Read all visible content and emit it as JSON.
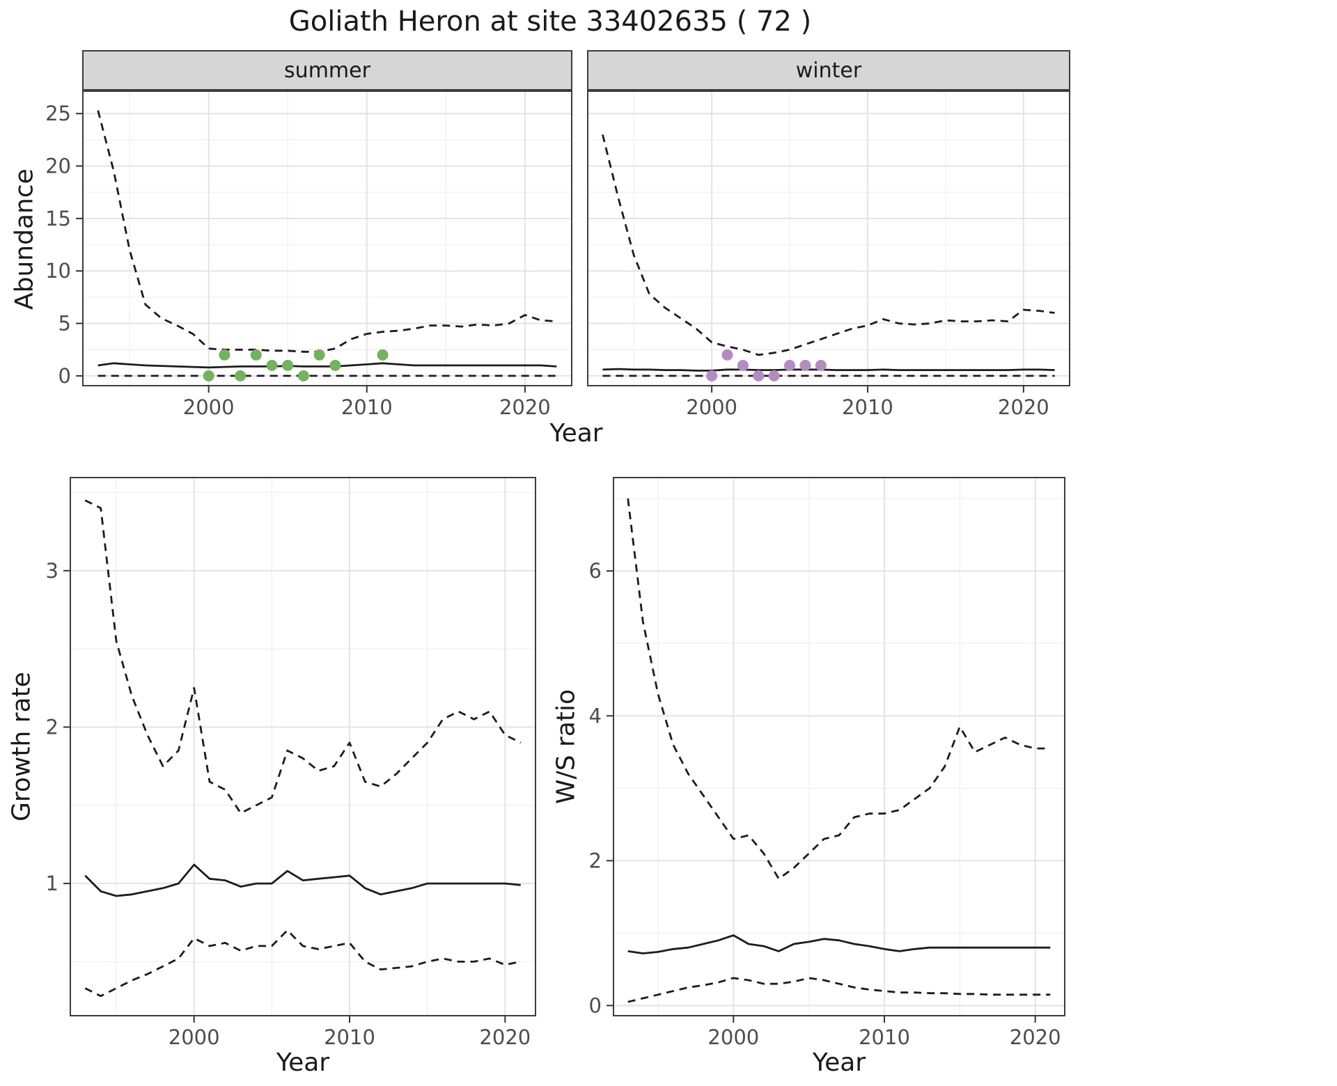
{
  "title": "Goliath Heron at site 33402635 ( 72 )",
  "labels": {
    "year": "Year",
    "abundance": "Abundance",
    "growth_rate": "Growth rate",
    "ws_ratio": "W/S ratio"
  },
  "colors": {
    "line": "#1c1c1c",
    "summer_points": "#74b35e",
    "winter_points": "#b48cc2",
    "strip_bg": "#d6d6d6",
    "grid_major": "#e3e3e3",
    "grid_minor": "#f0f0f0"
  },
  "chart_data": [
    {
      "id": "abundance_summer",
      "type": "line",
      "facet": "summer",
      "xlabel": "Year",
      "ylabel": "Abundance",
      "xlim": [
        1992,
        2023
      ],
      "ylim": [
        -1,
        27.2
      ],
      "x_ticks": [
        2000,
        2010,
        2020
      ],
      "x_minor": [
        1995,
        2005,
        2015
      ],
      "y_ticks": [
        0,
        5,
        10,
        15,
        20,
        25
      ],
      "y_minor": [
        2.5,
        7.5,
        12.5,
        17.5,
        22.5
      ],
      "grid": true,
      "legend": "none",
      "x": [
        1993,
        1994,
        1995,
        1996,
        1997,
        1998,
        1999,
        2000,
        2001,
        2002,
        2003,
        2004,
        2005,
        2006,
        2007,
        2008,
        2009,
        2010,
        2011,
        2012,
        2013,
        2014,
        2015,
        2016,
        2017,
        2018,
        2019,
        2020,
        2021,
        2022
      ],
      "series": [
        {
          "name": "upper CI",
          "style": "dashed",
          "y": [
            25.3,
            19.5,
            12.0,
            6.8,
            5.5,
            4.8,
            4.0,
            2.6,
            2.5,
            2.5,
            2.5,
            2.4,
            2.4,
            2.3,
            2.3,
            2.6,
            3.5,
            4.0,
            4.2,
            4.3,
            4.5,
            4.8,
            4.8,
            4.7,
            4.9,
            4.8,
            5.0,
            5.8,
            5.3,
            5.2
          ]
        },
        {
          "name": "median",
          "style": "solid",
          "y": [
            1.0,
            1.2,
            1.1,
            1.0,
            0.95,
            0.9,
            0.85,
            0.8,
            0.85,
            0.9,
            0.9,
            0.9,
            0.95,
            0.9,
            0.9,
            0.9,
            1.0,
            1.1,
            1.2,
            1.1,
            1.0,
            1.0,
            1.0,
            1.0,
            1.0,
            1.0,
            1.0,
            1.0,
            1.0,
            0.9
          ]
        },
        {
          "name": "lower CI",
          "style": "dashed",
          "y": [
            0,
            0,
            0,
            0,
            0,
            0,
            0,
            0,
            0,
            0,
            0,
            0,
            0,
            0,
            0,
            0,
            0,
            0,
            0,
            0,
            0,
            0,
            0,
            0,
            0,
            0,
            0,
            0,
            0,
            0
          ]
        }
      ],
      "points": {
        "name": "observed summer counts",
        "color": "#74b35e",
        "x": [
          2000,
          2001,
          2002,
          2003,
          2004,
          2005,
          2006,
          2007,
          2008,
          2011
        ],
        "y": [
          0,
          2,
          0,
          2,
          1,
          1,
          0,
          2,
          1,
          2
        ]
      }
    },
    {
      "id": "abundance_winter",
      "type": "line",
      "facet": "winter",
      "xlabel": "Year",
      "ylabel": "Abundance",
      "xlim": [
        1992,
        2023
      ],
      "ylim": [
        -1,
        27.2
      ],
      "x_ticks": [
        2000,
        2010,
        2020
      ],
      "x_minor": [
        1995,
        2005,
        2015
      ],
      "y_ticks": [
        0,
        5,
        10,
        15,
        20,
        25
      ],
      "y_minor": [
        2.5,
        7.5,
        12.5,
        17.5,
        22.5
      ],
      "grid": true,
      "legend": "none",
      "x": [
        1993,
        1994,
        1995,
        1996,
        1997,
        1998,
        1999,
        2000,
        2001,
        2002,
        2003,
        2004,
        2005,
        2006,
        2007,
        2008,
        2009,
        2010,
        2011,
        2012,
        2013,
        2014,
        2015,
        2016,
        2017,
        2018,
        2019,
        2020,
        2021,
        2022
      ],
      "series": [
        {
          "name": "upper CI",
          "style": "dashed",
          "y": [
            23.0,
            17.0,
            11.5,
            7.8,
            6.5,
            5.5,
            4.5,
            3.2,
            2.8,
            2.5,
            2.0,
            2.2,
            2.5,
            3.0,
            3.5,
            4.0,
            4.5,
            4.8,
            5.4,
            5.0,
            4.9,
            5.0,
            5.3,
            5.2,
            5.2,
            5.3,
            5.2,
            6.3,
            6.2,
            6.0
          ]
        },
        {
          "name": "median",
          "style": "solid",
          "y": [
            0.6,
            0.65,
            0.6,
            0.6,
            0.55,
            0.55,
            0.5,
            0.5,
            0.6,
            0.6,
            0.55,
            0.55,
            0.6,
            0.6,
            0.6,
            0.55,
            0.55,
            0.55,
            0.6,
            0.55,
            0.55,
            0.55,
            0.55,
            0.55,
            0.55,
            0.55,
            0.55,
            0.6,
            0.6,
            0.55
          ]
        },
        {
          "name": "lower CI",
          "style": "dashed",
          "y": [
            0,
            0,
            0,
            0,
            0,
            0,
            0,
            0,
            0,
            0,
            0,
            0,
            0,
            0,
            0,
            0,
            0,
            0,
            0,
            0,
            0,
            0,
            0,
            0,
            0,
            0,
            0,
            0,
            0,
            0
          ]
        }
      ],
      "points": {
        "name": "observed winter counts",
        "color": "#b48cc2",
        "x": [
          2000,
          2001,
          2002,
          2003,
          2004,
          2005,
          2006,
          2007
        ],
        "y": [
          0,
          2,
          1,
          0,
          0,
          1,
          1,
          1
        ]
      }
    },
    {
      "id": "growth_rate",
      "type": "line",
      "facet": "",
      "xlabel": "Year",
      "ylabel": "Growth rate",
      "xlim": [
        1992,
        2022
      ],
      "ylim": [
        0.15,
        3.6
      ],
      "x_ticks": [
        2000,
        2010,
        2020
      ],
      "x_minor": [
        1995,
        2005,
        2015
      ],
      "y_ticks": [
        1,
        2,
        3
      ],
      "y_minor": [
        0.5,
        1.5,
        2.5,
        3.5
      ],
      "grid": true,
      "legend": "none",
      "x": [
        1993,
        1994,
        1995,
        1996,
        1997,
        1998,
        1999,
        2000,
        2001,
        2002,
        2003,
        2004,
        2005,
        2006,
        2007,
        2008,
        2009,
        2010,
        2011,
        2012,
        2013,
        2014,
        2015,
        2016,
        2017,
        2018,
        2019,
        2020,
        2021
      ],
      "series": [
        {
          "name": "upper CI",
          "style": "dashed",
          "y": [
            3.45,
            3.4,
            2.55,
            2.2,
            1.95,
            1.75,
            1.85,
            2.25,
            1.65,
            1.6,
            1.45,
            1.5,
            1.55,
            1.85,
            1.8,
            1.72,
            1.75,
            1.9,
            1.65,
            1.62,
            1.7,
            1.8,
            1.9,
            2.05,
            2.1,
            2.05,
            2.1,
            1.95,
            1.9
          ]
        },
        {
          "name": "median",
          "style": "solid",
          "y": [
            1.05,
            0.95,
            0.92,
            0.93,
            0.95,
            0.97,
            1.0,
            1.12,
            1.03,
            1.02,
            0.98,
            1.0,
            1.0,
            1.08,
            1.02,
            1.03,
            1.04,
            1.05,
            0.97,
            0.93,
            0.95,
            0.97,
            1.0,
            1.0,
            1.0,
            1.0,
            1.0,
            1.0,
            0.99
          ]
        },
        {
          "name": "lower CI",
          "style": "dashed",
          "y": [
            0.33,
            0.28,
            0.33,
            0.38,
            0.42,
            0.47,
            0.52,
            0.65,
            0.6,
            0.62,
            0.57,
            0.6,
            0.6,
            0.7,
            0.6,
            0.58,
            0.6,
            0.62,
            0.5,
            0.45,
            0.46,
            0.47,
            0.5,
            0.52,
            0.5,
            0.5,
            0.52,
            0.48,
            0.5
          ]
        }
      ]
    },
    {
      "id": "ws_ratio",
      "type": "line",
      "facet": "",
      "xlabel": "Year",
      "ylabel": "W/S ratio",
      "xlim": [
        1992,
        2022
      ],
      "ylim": [
        -0.15,
        7.3
      ],
      "x_ticks": [
        2000,
        2010,
        2020
      ],
      "x_minor": [
        1995,
        2005,
        2015
      ],
      "y_ticks": [
        0,
        2,
        4,
        6
      ],
      "y_minor": [
        1,
        3,
        5,
        7
      ],
      "grid": true,
      "legend": "none",
      "x": [
        1993,
        1994,
        1995,
        1996,
        1997,
        1998,
        1999,
        2000,
        2001,
        2002,
        2003,
        2004,
        2005,
        2006,
        2007,
        2008,
        2009,
        2010,
        2011,
        2012,
        2013,
        2014,
        2015,
        2016,
        2017,
        2018,
        2019,
        2020,
        2021
      ],
      "series": [
        {
          "name": "upper CI",
          "style": "dashed",
          "y": [
            7.0,
            5.3,
            4.3,
            3.6,
            3.2,
            2.9,
            2.6,
            2.3,
            2.35,
            2.1,
            1.75,
            1.9,
            2.1,
            2.3,
            2.35,
            2.6,
            2.65,
            2.65,
            2.7,
            2.85,
            3.0,
            3.3,
            3.85,
            3.5,
            3.6,
            3.7,
            3.6,
            3.55,
            3.55
          ]
        },
        {
          "name": "median",
          "style": "solid",
          "y": [
            0.75,
            0.72,
            0.74,
            0.78,
            0.8,
            0.85,
            0.9,
            0.97,
            0.85,
            0.82,
            0.75,
            0.85,
            0.88,
            0.92,
            0.9,
            0.85,
            0.82,
            0.78,
            0.75,
            0.78,
            0.8,
            0.8,
            0.8,
            0.8,
            0.8,
            0.8,
            0.8,
            0.8,
            0.8
          ]
        },
        {
          "name": "lower CI",
          "style": "dashed",
          "y": [
            0.05,
            0.1,
            0.15,
            0.2,
            0.25,
            0.28,
            0.32,
            0.38,
            0.35,
            0.3,
            0.3,
            0.33,
            0.38,
            0.35,
            0.3,
            0.25,
            0.22,
            0.2,
            0.18,
            0.18,
            0.17,
            0.17,
            0.16,
            0.16,
            0.15,
            0.15,
            0.15,
            0.15,
            0.15
          ]
        }
      ]
    }
  ]
}
